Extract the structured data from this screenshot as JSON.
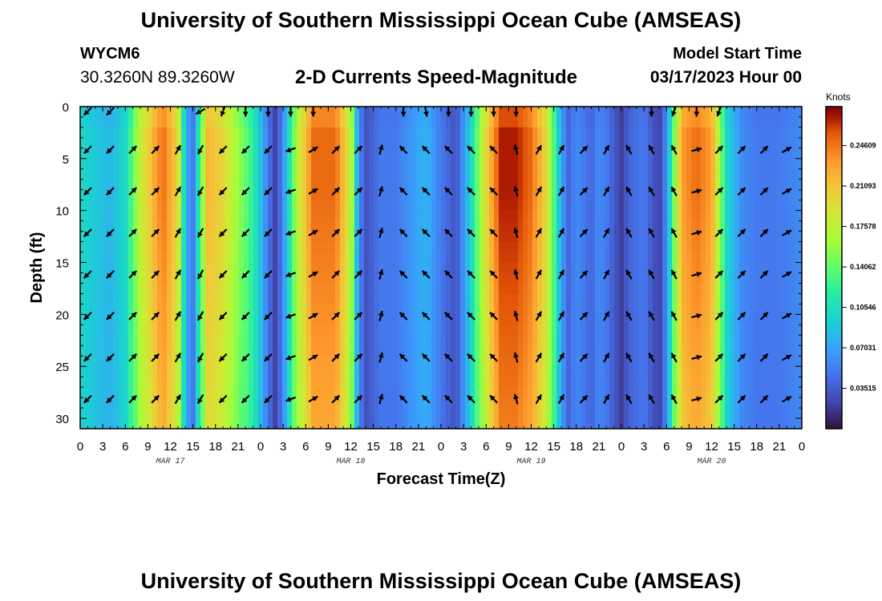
{
  "header": {
    "title": "University of Southern Mississippi Ocean Cube (AMSEAS)",
    "station": "WYCM6",
    "coords": "30.3260N  89.3260W",
    "subtitle": "2-D Currents Speed-Magnitude",
    "model_start_label": "Model Start Time",
    "model_start_value": "03/17/2023 Hour 00"
  },
  "footer": {
    "title": "University of Southern Mississippi Ocean Cube (AMSEAS)"
  },
  "chart_data": {
    "type": "heatmap",
    "title": "2-D Currents Speed-Magnitude",
    "xlabel": "Forecast Time(Z)",
    "ylabel": "Depth (ft)",
    "x_hours_range": [
      0,
      96
    ],
    "x_tick_labels": [
      "0",
      "3",
      "6",
      "9",
      "12",
      "15",
      "18",
      "21",
      "0",
      "3",
      "6",
      "9",
      "12",
      "15",
      "18",
      "21",
      "0",
      "3",
      "6",
      "9",
      "12",
      "15",
      "18",
      "21",
      "0",
      "3",
      "6",
      "9",
      "12",
      "15",
      "18",
      "21",
      "0"
    ],
    "day_labels": [
      {
        "label": "MAR 17",
        "hour": 12
      },
      {
        "label": "MAR 18",
        "hour": 36
      },
      {
        "label": "MAR 19",
        "hour": 60
      },
      {
        "label": "MAR 20",
        "hour": 84
      }
    ],
    "y_ticks": [
      0,
      5,
      10,
      15,
      20,
      25,
      30
    ],
    "ylim": [
      0,
      31
    ],
    "colorbar": {
      "unit": "Knots",
      "range": [
        0,
        0.28
      ],
      "tick_labels": [
        "0.24609",
        "0.21093",
        "0.17578",
        "0.14062",
        "0.10546",
        "0.07031",
        "0.03515"
      ],
      "tick_values": [
        0.24609,
        0.21093,
        0.17578,
        0.14062,
        0.10546,
        0.07031,
        0.03515
      ]
    },
    "speed_profile": {
      "description": "approximate surface-layer speed (knots) vs forecast hour",
      "hours": [
        0,
        4,
        6,
        8,
        11,
        13,
        14,
        15,
        17,
        19,
        21,
        23,
        25,
        26,
        27,
        29,
        31,
        34,
        36,
        37,
        38,
        40,
        42,
        46,
        48,
        50,
        52,
        54,
        56,
        58,
        60,
        62,
        64,
        65,
        66,
        68,
        69,
        70,
        72,
        73,
        75,
        77,
        78,
        80,
        82,
        84,
        86,
        88,
        90,
        93,
        96
      ],
      "values": [
        0.1,
        0.08,
        0.1,
        0.18,
        0.25,
        0.2,
        0.08,
        0.05,
        0.22,
        0.2,
        0.16,
        0.12,
        0.05,
        0.02,
        0.06,
        0.18,
        0.25,
        0.25,
        0.18,
        0.06,
        0.03,
        0.05,
        0.05,
        0.08,
        0.05,
        0.03,
        0.1,
        0.2,
        0.27,
        0.27,
        0.25,
        0.2,
        0.07,
        0.04,
        0.06,
        0.04,
        0.06,
        0.05,
        0.02,
        0.04,
        0.05,
        0.02,
        0.06,
        0.23,
        0.25,
        0.23,
        0.1,
        0.06,
        0.05,
        0.05,
        0.06
      ]
    },
    "vectors": {
      "description": "current direction arrows, direction in degrees (0=north/up, clockwise)",
      "hours": [
        1,
        4,
        7,
        10,
        13,
        16,
        19,
        22,
        25,
        28,
        31,
        34,
        37,
        40,
        43,
        46,
        49,
        52,
        55,
        58,
        61,
        64,
        67,
        70,
        73,
        76,
        79,
        82,
        85,
        88,
        91,
        94
      ],
      "surface_dir": [
        225,
        225,
        null,
        null,
        null,
        240,
        200,
        180,
        180,
        180,
        180,
        null,
        null,
        null,
        180,
        170,
        180,
        180,
        180,
        180,
        null,
        null,
        null,
        null,
        null,
        180,
        200,
        180,
        200,
        null,
        null,
        null
      ],
      "deep_dir": [
        225,
        225,
        45,
        45,
        30,
        210,
        225,
        225,
        225,
        250,
        60,
        45,
        45,
        15,
        315,
        315,
        315,
        315,
        315,
        345,
        30,
        30,
        45,
        30,
        330,
        330,
        330,
        75,
        45,
        45,
        45,
        60
      ]
    }
  },
  "colors": {
    "background": "#ffffff",
    "arrow": "#000000",
    "frame": "#000000"
  }
}
